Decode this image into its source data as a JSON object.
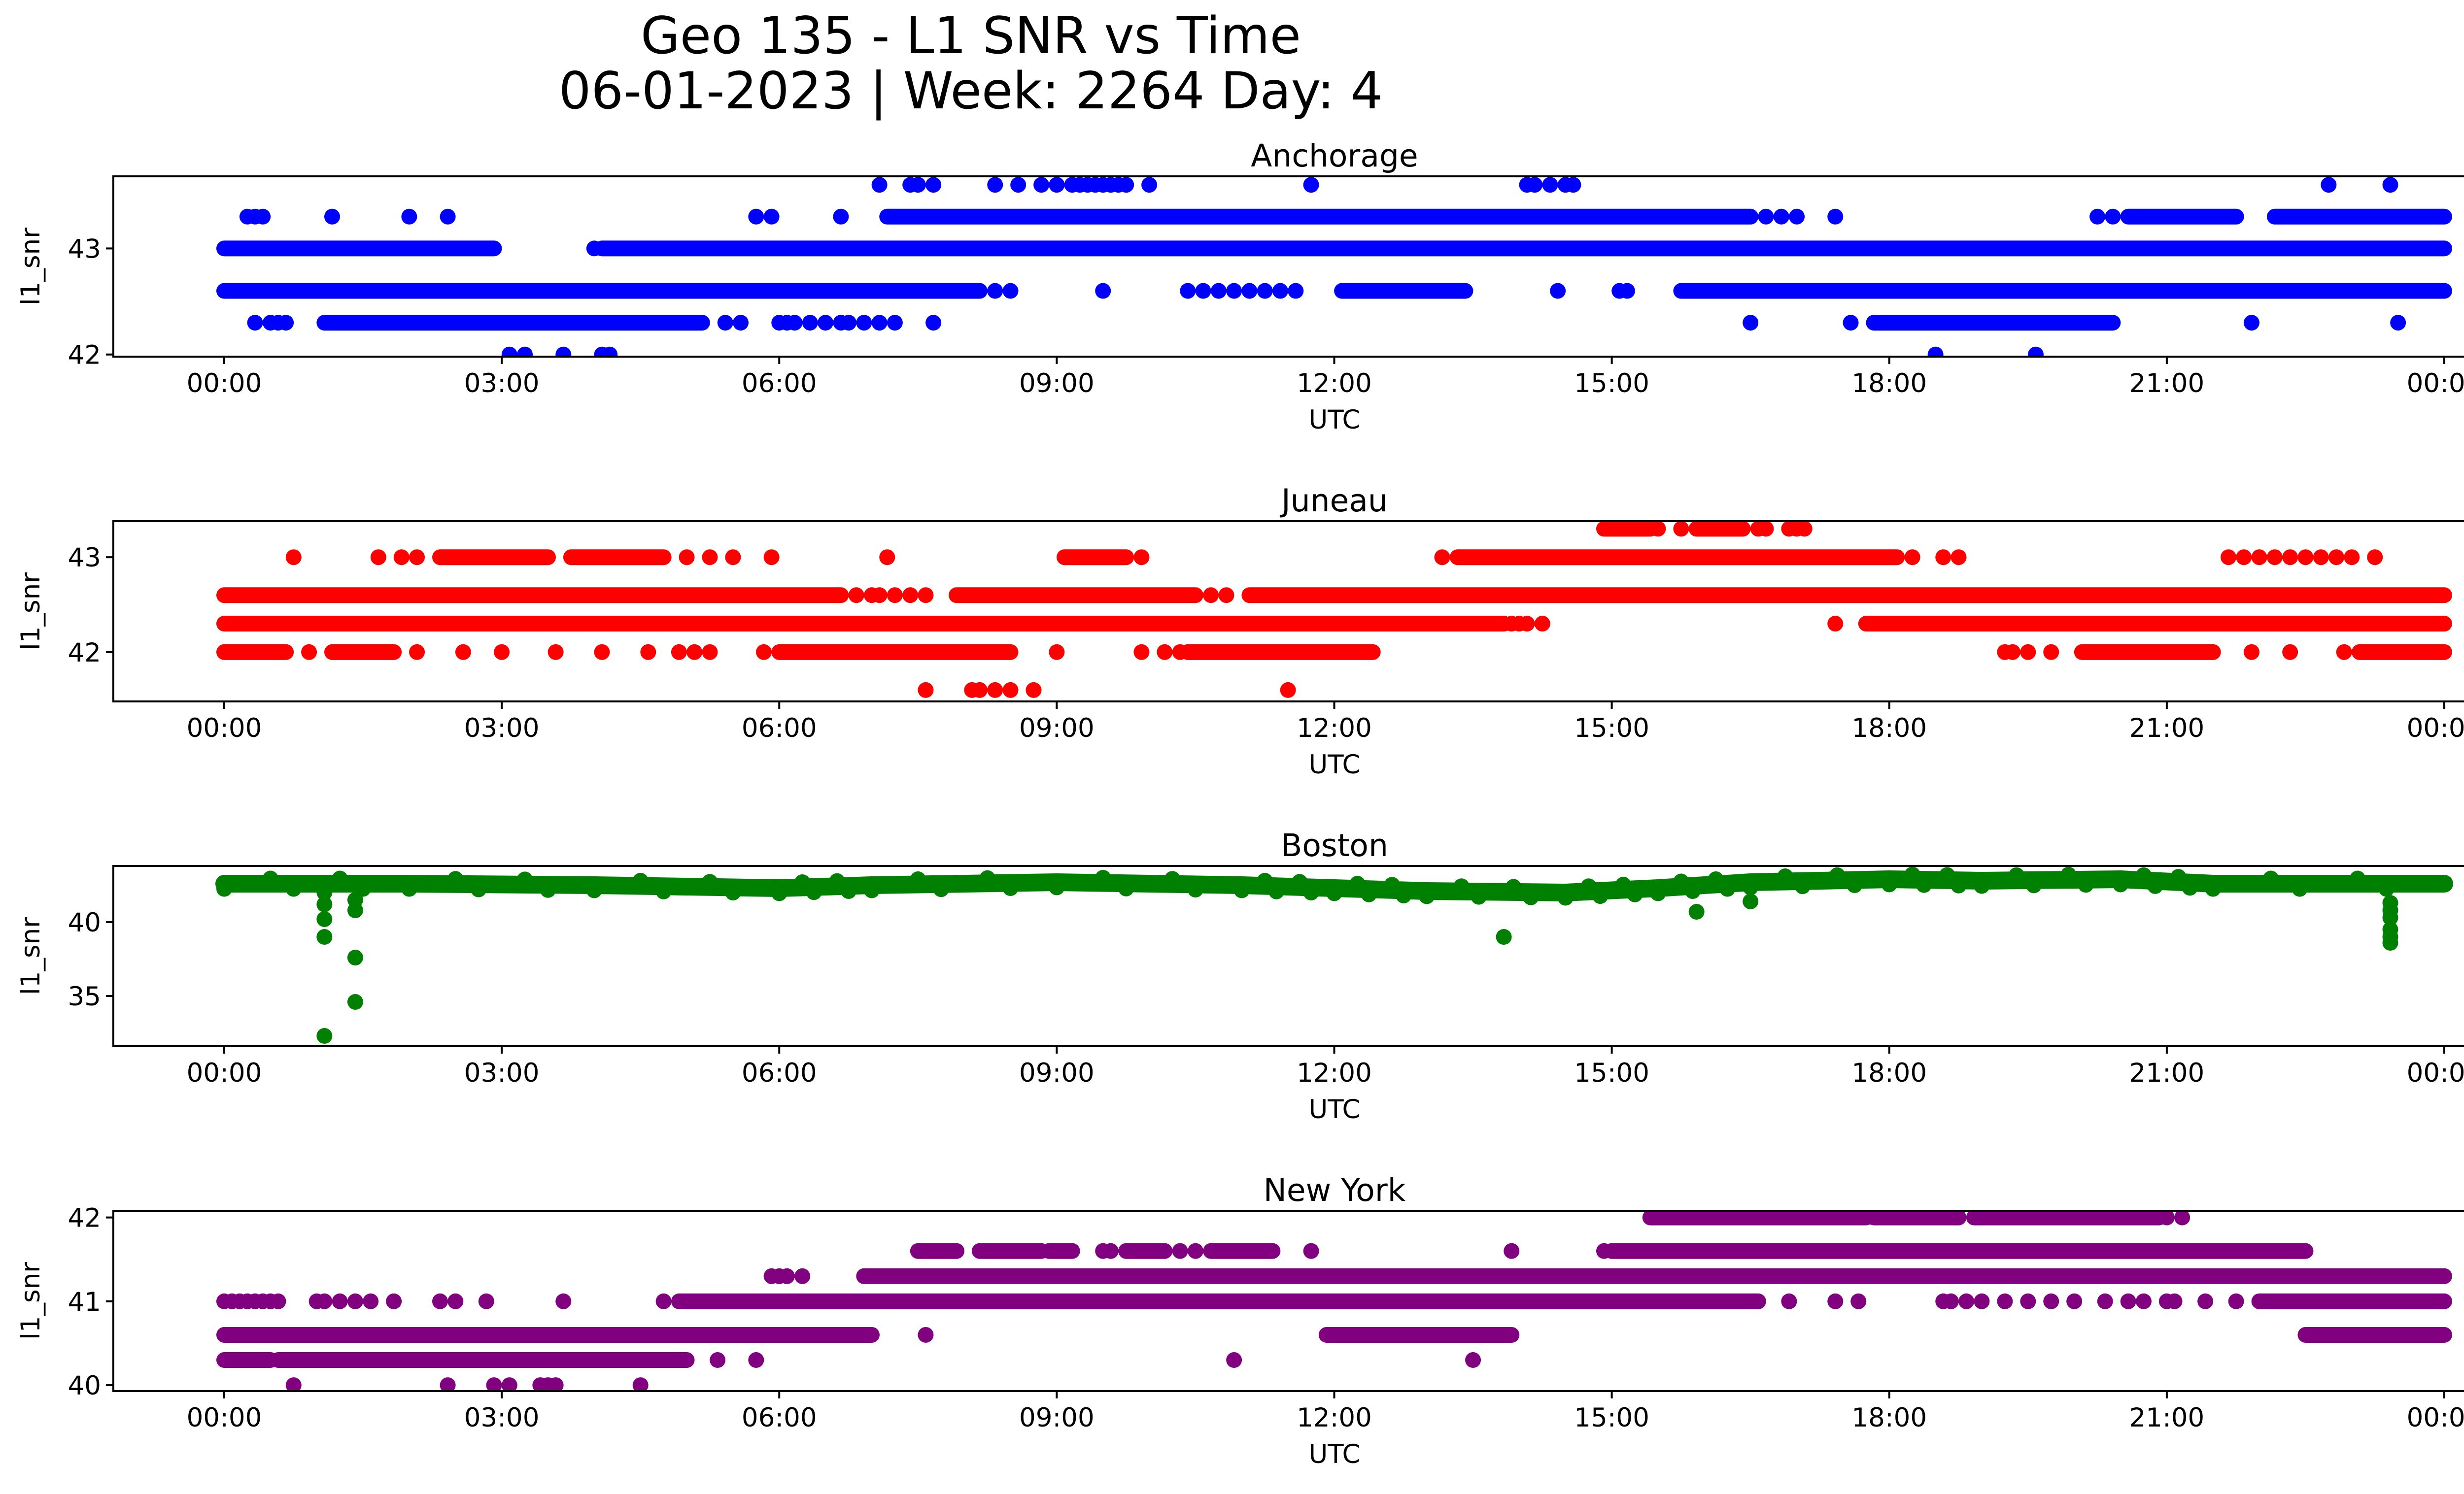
{
  "figure": {
    "title_line1": "Geo 135 - L1 SNR vs Time",
    "title_line2": "06-01-2023 | Week: 2264 Day: 4"
  },
  "chart_data": [
    {
      "type": "scatter",
      "title": "Anchorage",
      "color": "#0000ff",
      "xlabel": "UTC",
      "ylabel": "l1_snr",
      "xlim": [
        "00:00",
        "00:00"
      ],
      "x_tick_labels": [
        "00:00",
        "03:00",
        "06:00",
        "09:00",
        "12:00",
        "15:00",
        "18:00",
        "21:00",
        "00:00"
      ],
      "ylim": [
        41.98,
        43.68
      ],
      "y_ticks": [
        42,
        43
      ],
      "levels": [
        {
          "y": 43.0,
          "ranges": [
            [
              "00:00",
              "02:55"
            ],
            [
              "04:05",
              "24:00"
            ]
          ],
          "points": [
            "04:00"
          ]
        },
        {
          "y": 42.6,
          "ranges": [
            [
              "00:00",
              "08:10"
            ],
            [
              "15:45",
              "24:00"
            ],
            [
              "12:05",
              "13:25"
            ]
          ],
          "points": [
            "08:20",
            "08:30",
            "09:30",
            "10:25",
            "10:35",
            "10:45",
            "10:55",
            "11:05",
            "11:15",
            "11:25",
            "11:35",
            "12:40",
            "14:25",
            "15:05",
            "15:10"
          ]
        },
        {
          "y": 43.3,
          "ranges": [
            [
              "07:10",
              "16:30"
            ],
            [
              "20:35",
              "21:45"
            ],
            [
              "22:10",
              "24:00"
            ]
          ],
          "points": [
            "00:15",
            "00:20",
            "00:25",
            "01:10",
            "02:00",
            "02:25",
            "05:45",
            "05:55",
            "06:40",
            "16:40",
            "16:50",
            "17:00",
            "17:25",
            "20:15",
            "20:25"
          ]
        },
        {
          "y": 42.3,
          "ranges": [
            [
              "01:05",
              "05:10"
            ],
            [
              "17:50",
              "20:25"
            ]
          ],
          "points": [
            "00:20",
            "00:30",
            "00:35",
            "00:40",
            "05:25",
            "05:35",
            "06:00",
            "06:05",
            "06:10",
            "06:20",
            "06:30",
            "06:40",
            "06:45",
            "06:55",
            "07:05",
            "07:15",
            "07:40",
            "16:30",
            "17:35",
            "21:55",
            "23:30"
          ]
        },
        {
          "y": 43.6,
          "ranges": [],
          "points": [
            "07:05",
            "07:25",
            "07:30",
            "07:40",
            "08:20",
            "08:35",
            "08:50",
            "09:00",
            "09:10",
            "09:15",
            "09:20",
            "09:25",
            "09:30",
            "09:35",
            "09:40",
            "09:45",
            "10:00",
            "11:45",
            "14:05",
            "14:10",
            "14:20",
            "14:30",
            "14:35",
            "22:45",
            "23:25"
          ]
        },
        {
          "y": 42.0,
          "ranges": [],
          "points": [
            "03:05",
            "03:15",
            "03:40",
            "04:05",
            "04:10",
            "18:30",
            "19:35"
          ]
        }
      ]
    },
    {
      "type": "scatter",
      "title": "Juneau",
      "color": "#ff0000",
      "xlabel": "UTC",
      "ylabel": "l1_snr",
      "xlim": [
        "00:00",
        "00:00"
      ],
      "x_tick_labels": [
        "00:00",
        "03:00",
        "06:00",
        "09:00",
        "12:00",
        "15:00",
        "18:00",
        "21:00",
        "00:00"
      ],
      "ylim": [
        41.48,
        43.38
      ],
      "y_ticks": [
        42,
        43
      ],
      "levels": [
        {
          "y": 42.6,
          "ranges": [
            [
              "00:00",
              "06:40"
            ],
            [
              "07:55",
              "10:30"
            ],
            [
              "11:05",
              "24:00"
            ]
          ],
          "points": [
            "06:50",
            "07:00",
            "07:05",
            "07:15",
            "07:25",
            "07:35",
            "10:40",
            "10:50"
          ]
        },
        {
          "y": 42.3,
          "ranges": [
            [
              "00:00",
              "13:50"
            ],
            [
              "17:45",
              "24:00"
            ]
          ],
          "points": [
            "13:55",
            "14:00",
            "14:05",
            "14:15",
            "17:25"
          ]
        },
        {
          "y": 42.0,
          "ranges": [
            [
              "00:00",
              "00:40"
            ],
            [
              "01:10",
              "01:50"
            ],
            [
              "06:00",
              "08:30"
            ],
            [
              "10:25",
              "12:25"
            ],
            [
              "20:05",
              "21:30"
            ],
            [
              "23:05",
              "24:00"
            ]
          ],
          "points": [
            "00:55",
            "02:05",
            "02:35",
            "03:00",
            "03:35",
            "04:05",
            "04:35",
            "04:55",
            "05:05",
            "05:15",
            "05:50",
            "09:00",
            "09:55",
            "10:10",
            "10:20",
            "19:15",
            "19:20",
            "19:30",
            "19:45",
            "21:55",
            "22:20",
            "22:55"
          ]
        },
        {
          "y": 43.0,
          "ranges": [
            [
              "02:20",
              "03:30"
            ],
            [
              "03:45",
              "04:45"
            ],
            [
              "13:20",
              "18:05"
            ],
            [
              "09:05",
              "09:45"
            ]
          ],
          "points": [
            "00:45",
            "01:40",
            "01:55",
            "02:05",
            "05:00",
            "05:15",
            "05:30",
            "05:55",
            "07:10",
            "09:55",
            "13:10",
            "18:15",
            "18:35",
            "18:45",
            "21:40",
            "21:50",
            "22:00",
            "22:10",
            "22:20",
            "22:30",
            "22:40",
            "22:50",
            "23:00",
            "23:15"
          ]
        },
        {
          "y": 43.3,
          "ranges": [
            [
              "14:55",
              "15:25"
            ],
            [
              "15:55",
              "16:25"
            ]
          ],
          "points": [
            "15:30",
            "15:45",
            "16:35",
            "16:40",
            "16:55",
            "17:00",
            "17:05"
          ]
        },
        {
          "y": 41.6,
          "ranges": [],
          "points": [
            "07:35",
            "08:05",
            "08:10",
            "08:20",
            "08:30",
            "08:45",
            "11:30"
          ]
        }
      ]
    },
    {
      "type": "scatter",
      "title": "Boston",
      "color": "#008000",
      "xlabel": "UTC",
      "ylabel": "l1_snr",
      "xlim": [
        "00:00",
        "00:00"
      ],
      "x_tick_labels": [
        "00:00",
        "03:00",
        "06:00",
        "09:00",
        "12:00",
        "15:00",
        "18:00",
        "21:00",
        "00:00"
      ],
      "ylim": [
        31.6,
        43.8
      ],
      "y_ticks": [
        35,
        40
      ],
      "trend": [
        [
          "00:00",
          42.6
        ],
        [
          "02:00",
          42.6
        ],
        [
          "04:00",
          42.5
        ],
        [
          "06:00",
          42.3
        ],
        [
          "07:00",
          42.5
        ],
        [
          "09:00",
          42.7
        ],
        [
          "11:00",
          42.5
        ],
        [
          "12:00",
          42.3
        ],
        [
          "13:00",
          42.1
        ],
        [
          "14:30",
          42.0
        ],
        [
          "15:30",
          42.3
        ],
        [
          "16:30",
          42.7
        ],
        [
          "18:00",
          42.9
        ],
        [
          "19:00",
          42.8
        ],
        [
          "20:30",
          42.9
        ],
        [
          "21:30",
          42.6
        ],
        [
          "24:00",
          42.6
        ]
      ],
      "outliers": [
        [
          "01:05",
          32.3
        ],
        [
          "01:05",
          39.0
        ],
        [
          "01:05",
          40.2
        ],
        [
          "01:05",
          41.2
        ],
        [
          "01:05",
          42.0
        ],
        [
          "01:25",
          34.6
        ],
        [
          "01:25",
          37.6
        ],
        [
          "01:25",
          40.8
        ],
        [
          "01:25",
          41.5
        ],
        [
          "13:50",
          39.0
        ],
        [
          "15:55",
          40.7
        ],
        [
          "16:30",
          41.4
        ],
        [
          "23:25",
          38.6
        ],
        [
          "23:25",
          39.0
        ],
        [
          "23:25",
          39.5
        ],
        [
          "23:25",
          40.3
        ],
        [
          "23:25",
          40.8
        ],
        [
          "23:25",
          41.3
        ]
      ]
    },
    {
      "type": "scatter",
      "title": "New York",
      "color": "#800080",
      "xlabel": "UTC",
      "ylabel": "l1_snr",
      "xlim": [
        "00:00",
        "00:00"
      ],
      "x_tick_labels": [
        "00:00",
        "03:00",
        "06:00",
        "09:00",
        "12:00",
        "15:00",
        "18:00",
        "21:00",
        "00:00"
      ],
      "ylim": [
        39.93,
        42.08
      ],
      "y_ticks": [
        40,
        41,
        42
      ],
      "levels": [
        {
          "y": 40.6,
          "ranges": [
            [
              "00:00",
              "07:00"
            ],
            [
              "11:55",
              "13:55"
            ],
            [
              "22:30",
              "24:00"
            ]
          ],
          "points": [
            "07:35",
            "12:00",
            "12:05"
          ]
        },
        {
          "y": 40.3,
          "ranges": [
            [
              "00:00",
              "00:30"
            ],
            [
              "00:35",
              "05:00"
            ]
          ],
          "points": [
            "05:20",
            "05:45",
            "10:55",
            "13:30"
          ]
        },
        {
          "y": 41.0,
          "ranges": [
            [
              "04:55",
              "16:35"
            ],
            [
              "22:00",
              "24:00"
            ]
          ],
          "points": [
            "00:00",
            "00:05",
            "00:10",
            "00:15",
            "00:20",
            "00:25",
            "00:30",
            "00:35",
            "01:00",
            "01:05",
            "01:15",
            "01:25",
            "01:35",
            "01:50",
            "02:20",
            "02:30",
            "02:50",
            "03:40",
            "04:45",
            "16:55",
            "17:25",
            "17:40",
            "18:35",
            "18:40",
            "18:50",
            "19:00",
            "19:15",
            "19:30",
            "19:45",
            "20:00",
            "20:20",
            "20:35",
            "20:45",
            "21:00",
            "21:05",
            "21:25",
            "21:45"
          ]
        },
        {
          "y": 41.3,
          "ranges": [
            [
              "06:55",
              "24:00"
            ]
          ],
          "points": [
            "05:55",
            "06:00",
            "06:05",
            "06:15"
          ]
        },
        {
          "y": 41.6,
          "ranges": [
            [
              "07:30",
              "07:55"
            ],
            [
              "08:10",
              "08:50"
            ],
            [
              "08:55",
              "09:10"
            ],
            [
              "09:45",
              "10:10"
            ],
            [
              "10:40",
              "11:20"
            ],
            [
              "15:00",
              "22:30"
            ]
          ],
          "points": [
            "09:30",
            "09:35",
            "10:20",
            "10:30",
            "11:45",
            "13:55",
            "14:55"
          ]
        },
        {
          "y": 42.0,
          "ranges": [
            [
              "15:25",
              "17:45"
            ],
            [
              "17:50",
              "18:45"
            ],
            [
              "18:55",
              "20:55"
            ]
          ],
          "points": [
            "21:10",
            "21:00"
          ]
        },
        {
          "y": 40.0,
          "ranges": [],
          "points": [
            "00:45",
            "02:25",
            "02:55",
            "03:05",
            "03:25",
            "03:30",
            "03:35",
            "04:30"
          ]
        }
      ]
    }
  ]
}
